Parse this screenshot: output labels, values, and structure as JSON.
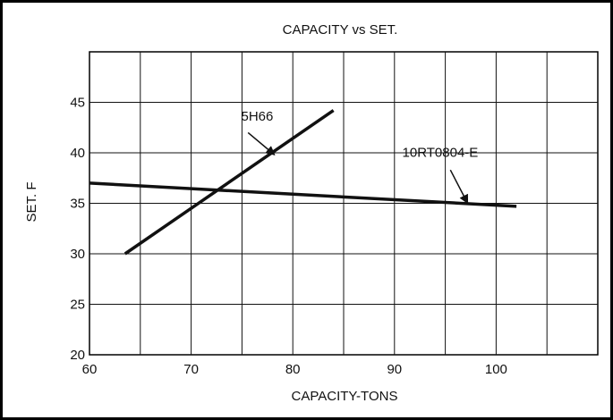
{
  "chart_data": {
    "type": "line",
    "title": "CAPACITY vs SET.",
    "xlabel": "CAPACITY-TONS",
    "ylabel": "SET. F",
    "xlim": [
      60,
      110
    ],
    "ylim": [
      20,
      50
    ],
    "x_ticks": [
      60,
      70,
      80,
      90,
      100
    ],
    "y_ticks": [
      20,
      25,
      30,
      35,
      40,
      45
    ],
    "grid": true,
    "grid_x_step": 5,
    "grid_y_step": 5,
    "series": [
      {
        "name": "5H66",
        "x": [
          63.5,
          84
        ],
        "y": [
          30,
          44.2
        ]
      },
      {
        "name": "10RT0804-E",
        "x": [
          60,
          102
        ],
        "y": [
          37,
          34.7
        ]
      }
    ],
    "annotations": [
      {
        "text": "5H66",
        "series": "5H66",
        "label_x": 76.5,
        "label_y": 43.2,
        "arrow_from": [
          75.6,
          42.0
        ],
        "arrow_to": [
          78.2,
          39.8
        ]
      },
      {
        "text": "10RT0804-E",
        "series": "10RT0804-E",
        "label_x": 94.5,
        "label_y": 39.6,
        "arrow_from": [
          95.5,
          38.3
        ],
        "arrow_to": [
          97.2,
          35.0
        ]
      }
    ],
    "colors": {
      "line": "#111111",
      "grid": "#111111",
      "frame": "#000000"
    }
  }
}
